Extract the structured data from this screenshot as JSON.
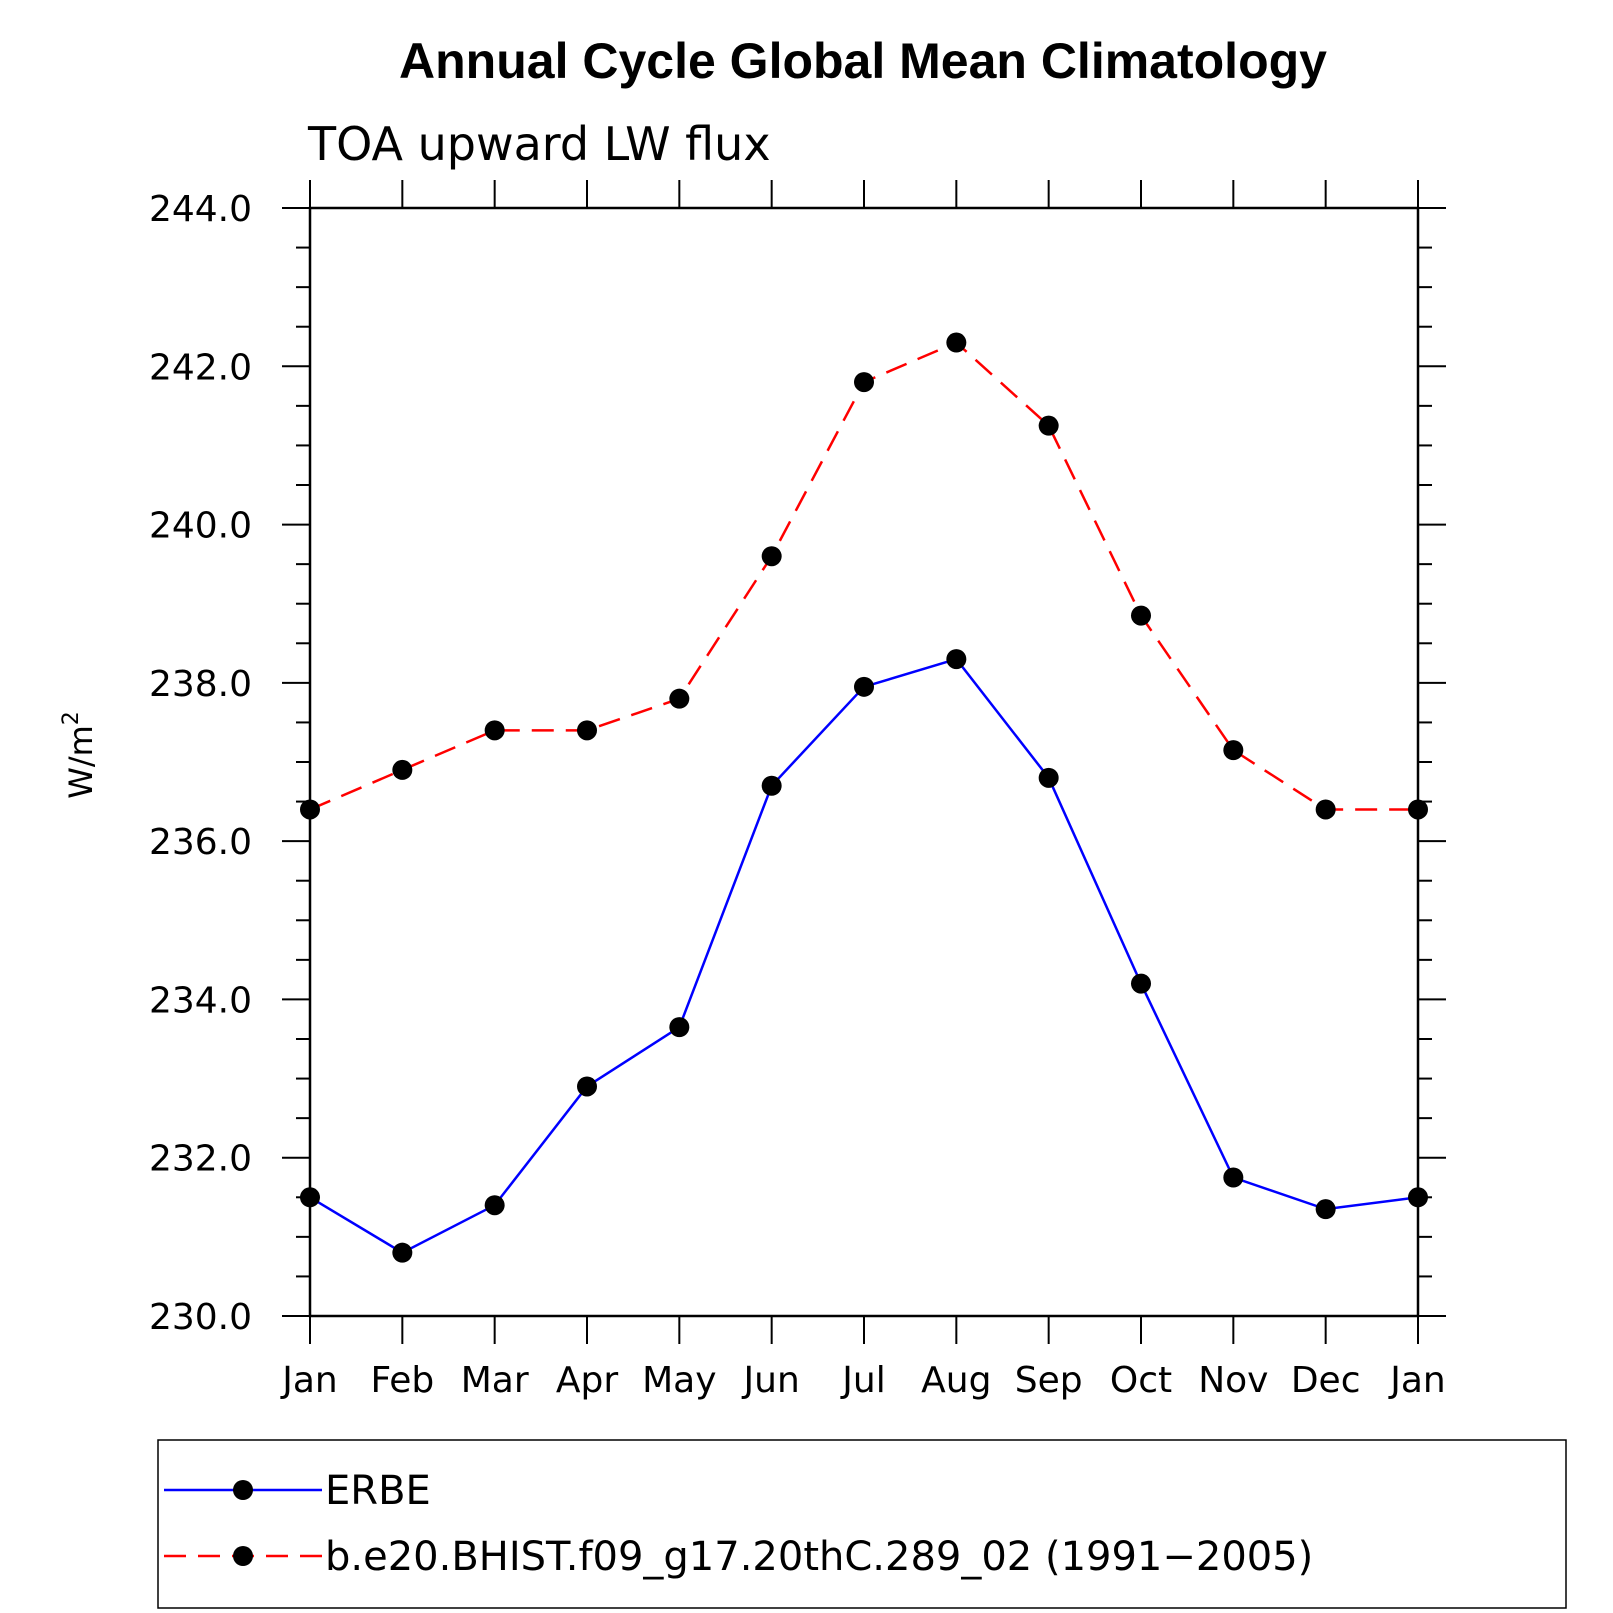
{
  "chart_data": {
    "type": "line",
    "title": "Annual Cycle Global Mean Climatology",
    "subtitle": "TOA upward LW flux",
    "ylabel": "W/m",
    "ylabel_superscript": "2",
    "xlabel": "",
    "ylim": [
      230.0,
      244.0
    ],
    "yticks": [
      "230.0",
      "232.0",
      "234.0",
      "236.0",
      "238.0",
      "240.0",
      "242.0",
      "244.0"
    ],
    "categories": [
      "Jan",
      "Feb",
      "Mar",
      "Apr",
      "May",
      "Jun",
      "Jul",
      "Aug",
      "Sep",
      "Oct",
      "Nov",
      "Dec",
      "Jan"
    ],
    "grid": false,
    "legend_position": "bottom",
    "series": [
      {
        "name": "ERBE",
        "color": "#0000ff",
        "dash": "solid",
        "values": [
          231.5,
          230.8,
          231.4,
          232.9,
          233.65,
          236.7,
          237.95,
          238.3,
          236.8,
          234.2,
          231.75,
          231.35,
          231.5
        ]
      },
      {
        "name": "b.e20.BHIST.f09_g17.20thC.289_02 (1991−2005)",
        "color": "#ff0000",
        "dash": "dashed",
        "values": [
          236.4,
          236.9,
          237.4,
          237.4,
          237.8,
          239.6,
          241.8,
          242.3,
          241.25,
          238.85,
          237.15,
          236.4,
          236.4
        ]
      }
    ]
  }
}
